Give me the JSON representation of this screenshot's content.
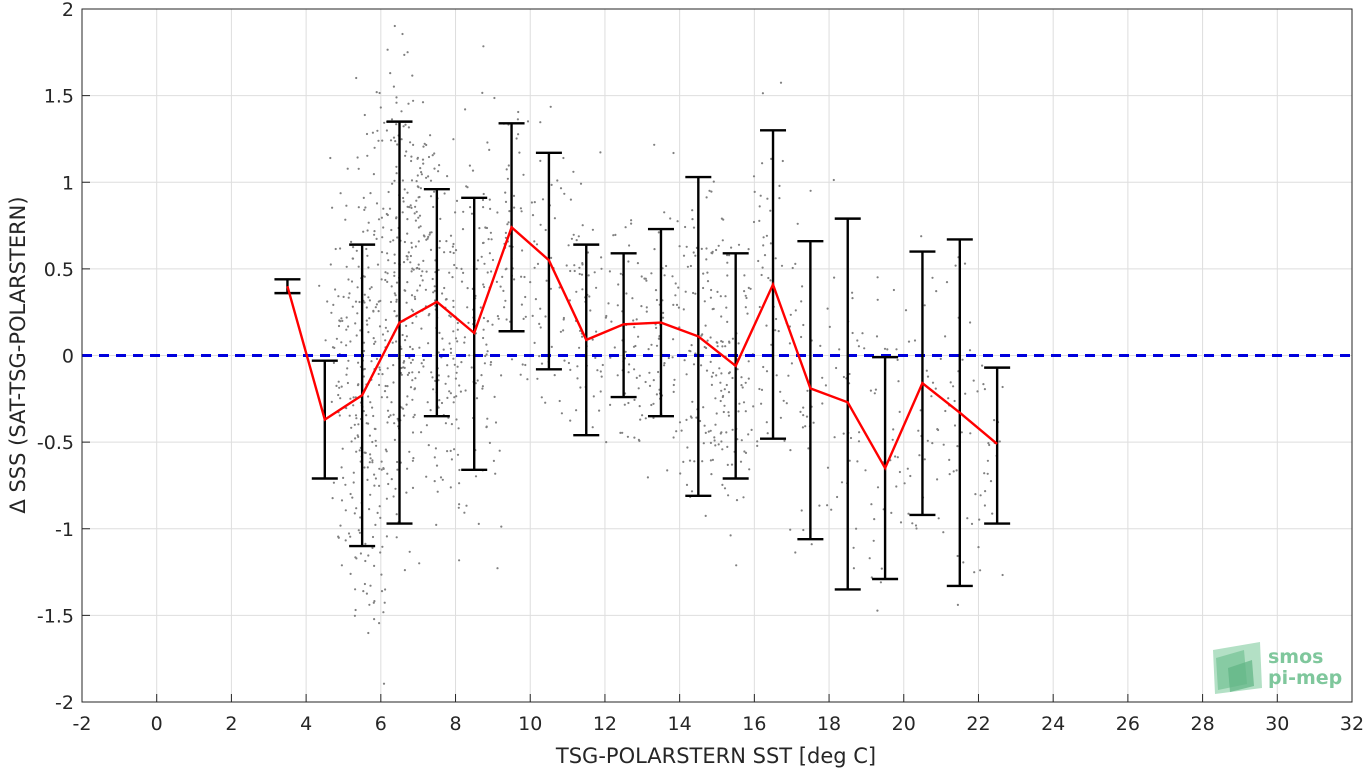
{
  "chart_data": {
    "type": "line",
    "title": "",
    "xlabel": "TSG-POLARSTERN SST [deg C]",
    "ylabel": "Δ SSS (SAT-TSG-POLARSTERN)",
    "xlim": [
      -2,
      32
    ],
    "ylim": [
      -2,
      2
    ],
    "xticks": [
      "-2",
      "0",
      "2",
      "4",
      "6",
      "8",
      "10",
      "12",
      "14",
      "16",
      "18",
      "20",
      "22",
      "24",
      "26",
      "28",
      "30",
      "32"
    ],
    "yticks": [
      "-2",
      "-1.5",
      "-1",
      "-0.5",
      "0",
      "0.5",
      "1",
      "1.5",
      "2"
    ],
    "grid": true,
    "colors": {
      "mean_line": "#ff0000",
      "error_bars": "#000000",
      "zero_line": "#0000dd",
      "scatter": "#808080"
    },
    "zero_line": {
      "y": 0,
      "style": "dashed"
    },
    "series": [
      {
        "type": "errorbar",
        "x": [
          3.5,
          4.5,
          5.5,
          6.5,
          7.5,
          8.5,
          9.5,
          10.5,
          11.5,
          12.5,
          13.5,
          14.5,
          15.5,
          16.5,
          17.5,
          18.5,
          19.5,
          20.5,
          21.5,
          22.5
        ],
        "mean": [
          0.4,
          -0.37,
          -0.23,
          0.19,
          0.31,
          0.13,
          0.74,
          0.55,
          0.09,
          0.18,
          0.19,
          0.11,
          -0.06,
          0.41,
          -0.19,
          -0.27,
          -0.65,
          -0.16,
          -0.33,
          -0.51
        ],
        "upper": [
          0.44,
          -0.03,
          0.64,
          1.35,
          0.96,
          0.91,
          1.34,
          1.17,
          0.64,
          0.59,
          0.73,
          1.03,
          0.59,
          1.3,
          0.66,
          0.79,
          -0.01,
          0.6,
          0.67,
          -0.07
        ],
        "lower": [
          0.36,
          -0.71,
          -1.1,
          -0.97,
          -0.35,
          -0.66,
          0.14,
          -0.08,
          -0.46,
          -0.24,
          -0.35,
          -0.81,
          -0.71,
          -0.48,
          -1.06,
          -1.35,
          -1.29,
          -0.92,
          -1.33,
          -0.97
        ]
      }
    ],
    "scatter_clusters": [
      {
        "x": 5.0,
        "y": -0.1,
        "sx": 0.25,
        "sy": 0.55,
        "n": 90
      },
      {
        "x": 5.7,
        "y": -0.3,
        "sx": 0.25,
        "sy": 0.75,
        "n": 170
      },
      {
        "x": 6.4,
        "y": 0.3,
        "sx": 0.3,
        "sy": 0.75,
        "n": 180
      },
      {
        "x": 7.1,
        "y": 0.4,
        "sx": 0.3,
        "sy": 0.6,
        "n": 140
      },
      {
        "x": 7.9,
        "y": 0.1,
        "sx": 0.35,
        "sy": 0.6,
        "n": 110
      },
      {
        "x": 8.7,
        "y": 0.2,
        "sx": 0.35,
        "sy": 0.55,
        "n": 80
      },
      {
        "x": 9.5,
        "y": 0.7,
        "sx": 0.35,
        "sy": 0.4,
        "n": 60
      },
      {
        "x": 10.5,
        "y": 0.5,
        "sx": 0.4,
        "sy": 0.45,
        "n": 60
      },
      {
        "x": 11.5,
        "y": 0.2,
        "sx": 0.4,
        "sy": 0.4,
        "n": 60
      },
      {
        "x": 12.6,
        "y": 0.1,
        "sx": 0.4,
        "sy": 0.35,
        "n": 60
      },
      {
        "x": 13.6,
        "y": 0.1,
        "sx": 0.4,
        "sy": 0.4,
        "n": 70
      },
      {
        "x": 14.6,
        "y": 0.1,
        "sx": 0.4,
        "sy": 0.55,
        "n": 90
      },
      {
        "x": 15.4,
        "y": -0.1,
        "sx": 0.35,
        "sy": 0.45,
        "n": 90
      },
      {
        "x": 16.3,
        "y": 0.4,
        "sx": 0.4,
        "sy": 0.55,
        "n": 60
      },
      {
        "x": 17.5,
        "y": -0.2,
        "sx": 0.4,
        "sy": 0.5,
        "n": 40
      },
      {
        "x": 18.5,
        "y": -0.2,
        "sx": 0.4,
        "sy": 0.6,
        "n": 30
      },
      {
        "x": 19.6,
        "y": -0.5,
        "sx": 0.35,
        "sy": 0.45,
        "n": 35
      },
      {
        "x": 20.5,
        "y": -0.3,
        "sx": 0.35,
        "sy": 0.45,
        "n": 30
      },
      {
        "x": 21.5,
        "y": -0.3,
        "sx": 0.35,
        "sy": 0.6,
        "n": 40
      },
      {
        "x": 22.3,
        "y": -0.6,
        "sx": 0.25,
        "sy": 0.35,
        "n": 20
      }
    ]
  },
  "logo": {
    "line1": "smos",
    "line2": "pi-mep"
  }
}
